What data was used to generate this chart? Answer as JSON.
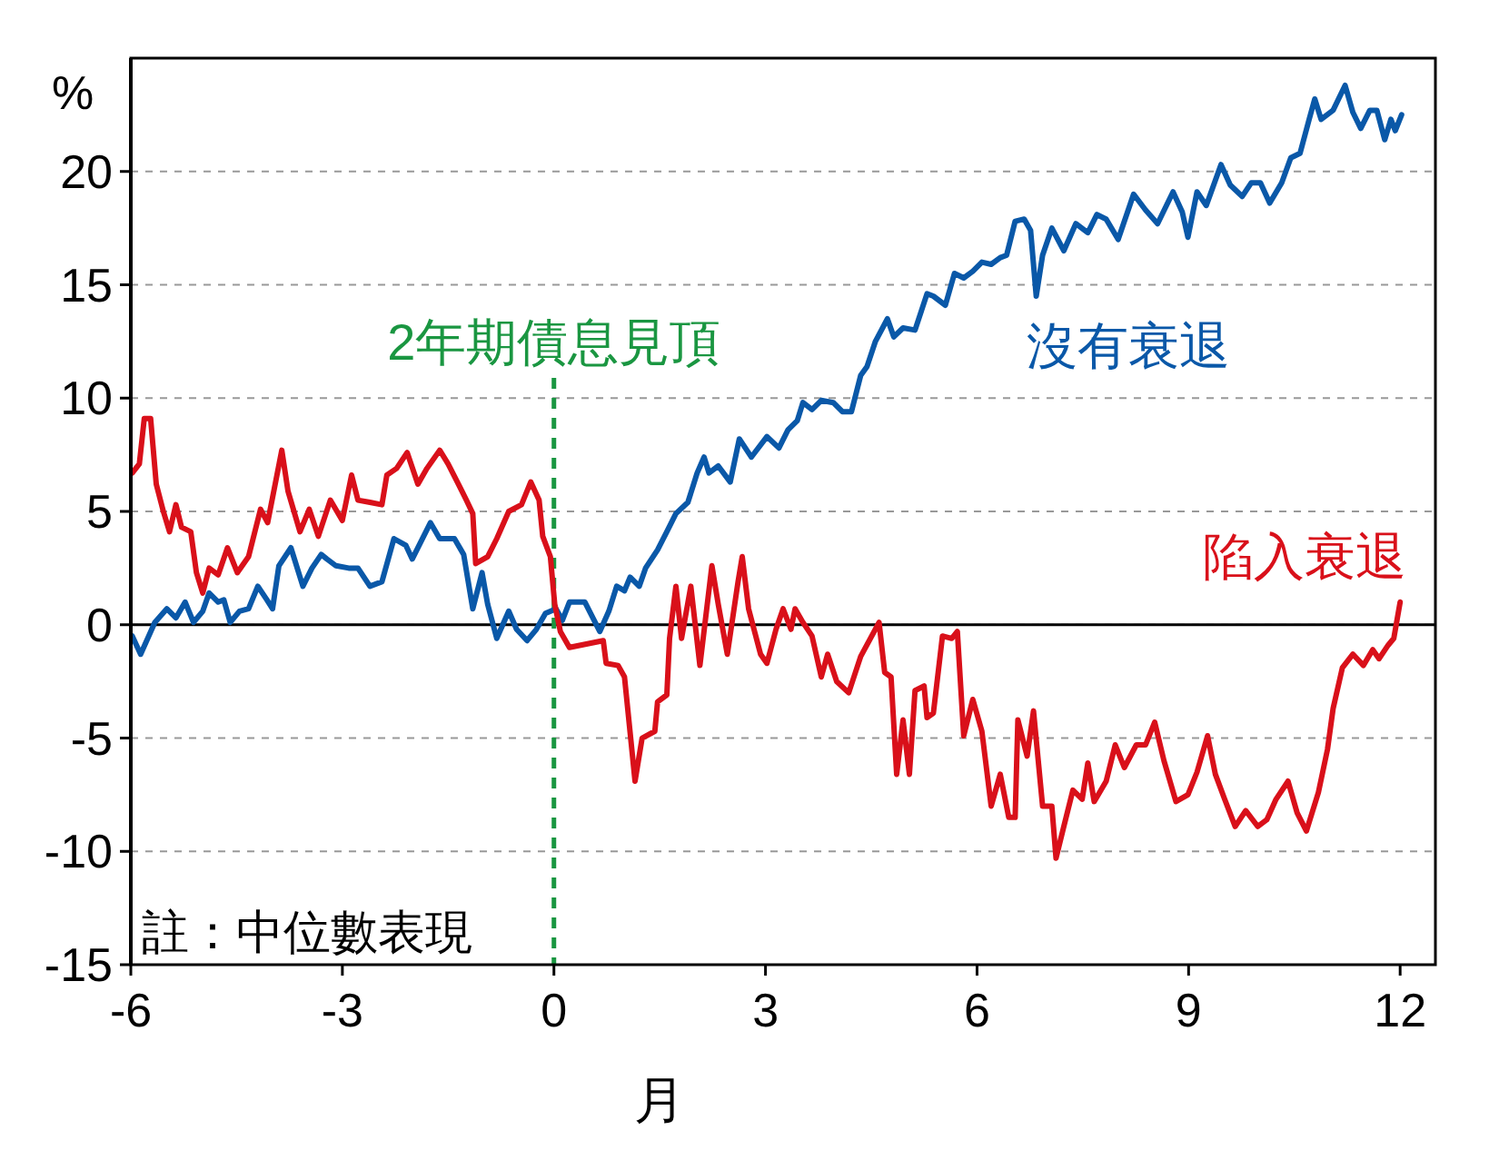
{
  "chart_data": {
    "type": "line",
    "xlabel": "月",
    "ylabel": "%",
    "xlim": [
      -6,
      12.5
    ],
    "ylim": [
      -15,
      25
    ],
    "xticks": [
      -6,
      -3,
      0,
      3,
      6,
      9,
      12
    ],
    "yticks": [
      -15,
      -10,
      -5,
      0,
      5,
      10,
      15,
      20
    ],
    "grid": "y",
    "line_style": "solid",
    "marker": "none",
    "series": [
      {
        "name": "沒有衰退",
        "color": "#0a58a8",
        "x": [
          -5.98,
          -5.86,
          -5.66,
          -5.49,
          -5.36,
          -5.23,
          -5.11,
          -4.98,
          -4.89,
          -4.76,
          -4.68,
          -4.59,
          -4.46,
          -4.33,
          -4.2,
          -4.07,
          -3.99,
          -3.9,
          -3.73,
          -3.56,
          -3.43,
          -3.3,
          -3.22,
          -3.09,
          -2.91,
          -2.78,
          -2.61,
          -2.44,
          -2.27,
          -2.1,
          -2.01,
          -1.88,
          -1.75,
          -1.62,
          -1.41,
          -1.28,
          -1.15,
          -1.02,
          -0.94,
          -0.81,
          -0.64,
          -0.53,
          -0.38,
          -0.25,
          -0.12,
          0.03,
          0.12,
          0.22,
          0.44,
          0.65,
          0.78,
          0.89,
          1.0,
          1.08,
          1.21,
          1.3,
          1.47,
          1.6,
          1.73,
          1.9,
          2.03,
          2.13,
          2.2,
          2.33,
          2.5,
          2.63,
          2.8,
          3.02,
          3.19,
          3.32,
          3.45,
          3.53,
          3.66,
          3.79,
          3.96,
          4.09,
          4.22,
          4.35,
          4.44,
          4.56,
          4.73,
          4.82,
          4.95,
          5.12,
          5.29,
          5.38,
          5.55,
          5.68,
          5.81,
          5.94,
          6.07,
          6.2,
          6.33,
          6.42,
          6.54,
          6.67,
          6.76,
          6.84,
          6.93,
          7.06,
          7.23,
          7.4,
          7.57,
          7.7,
          7.83,
          8.0,
          8.22,
          8.39,
          8.56,
          8.78,
          8.91,
          8.99,
          9.12,
          9.25,
          9.46,
          9.59,
          9.76,
          9.89,
          10.02,
          10.15,
          10.32,
          10.45,
          10.58,
          10.71,
          10.79,
          10.88,
          11.05,
          11.22,
          11.33,
          11.44,
          11.57,
          11.67,
          11.78,
          11.87,
          11.93,
          12.02
        ],
        "values": [
          -0.5,
          -1.3,
          0.1,
          0.7,
          0.3,
          1.0,
          0.1,
          0.6,
          1.4,
          1.0,
          1.1,
          0.1,
          0.6,
          0.7,
          1.7,
          1.1,
          0.7,
          2.6,
          3.4,
          1.7,
          2.5,
          3.1,
          2.9,
          2.6,
          2.5,
          2.5,
          1.7,
          1.9,
          3.8,
          3.5,
          2.9,
          3.7,
          4.5,
          3.8,
          3.8,
          3.1,
          0.7,
          2.3,
          0.9,
          -0.6,
          0.6,
          -0.2,
          -0.7,
          -0.2,
          0.5,
          0.7,
          0.2,
          1.0,
          1.0,
          -0.3,
          0.6,
          1.7,
          1.5,
          2.1,
          1.7,
          2.5,
          3.3,
          4.1,
          4.9,
          5.4,
          6.7,
          7.4,
          6.7,
          7.0,
          6.3,
          8.2,
          7.4,
          8.3,
          7.8,
          8.6,
          9.0,
          9.8,
          9.5,
          9.9,
          9.8,
          9.4,
          9.4,
          11.0,
          11.4,
          12.5,
          13.5,
          12.7,
          13.1,
          13.0,
          14.6,
          14.5,
          14.1,
          15.5,
          15.3,
          15.6,
          16.0,
          15.9,
          16.2,
          16.3,
          17.8,
          17.9,
          17.4,
          14.5,
          16.3,
          17.5,
          16.5,
          17.7,
          17.3,
          18.1,
          17.9,
          17.0,
          19.0,
          18.3,
          17.7,
          19.1,
          18.2,
          17.1,
          19.1,
          18.5,
          20.3,
          19.4,
          18.9,
          19.5,
          19.5,
          18.6,
          19.5,
          20.6,
          20.8,
          22.3,
          23.2,
          22.3,
          22.7,
          23.8,
          22.6,
          21.9,
          22.7,
          22.7,
          21.4,
          22.3,
          21.8,
          22.5
        ]
      },
      {
        "name": "陷入衰退",
        "color": "#d9101a",
        "x": [
          -5.98,
          -5.88,
          -5.81,
          -5.72,
          -5.64,
          -5.54,
          -5.45,
          -5.36,
          -5.28,
          -5.15,
          -5.07,
          -4.98,
          -4.89,
          -4.76,
          -4.63,
          -4.49,
          -4.33,
          -4.16,
          -4.06,
          -3.86,
          -3.77,
          -3.6,
          -3.47,
          -3.34,
          -3.17,
          -3.0,
          -2.87,
          -2.78,
          -2.61,
          -2.44,
          -2.37,
          -2.23,
          -2.08,
          -1.93,
          -1.8,
          -1.62,
          -1.5,
          -1.37,
          -1.24,
          -1.15,
          -1.11,
          -0.94,
          -0.81,
          -0.64,
          -0.46,
          -0.33,
          -0.21,
          -0.16,
          -0.05,
          0.01,
          0.09,
          0.22,
          0.7,
          0.74,
          0.91,
          1.0,
          1.15,
          1.25,
          1.43,
          1.47,
          1.6,
          1.64,
          1.73,
          1.81,
          1.94,
          2.07,
          2.24,
          2.33,
          2.46,
          2.61,
          2.67,
          2.76,
          2.93,
          3.02,
          3.15,
          3.25,
          3.36,
          3.42,
          3.53,
          3.66,
          3.79,
          3.88,
          4.01,
          4.18,
          4.35,
          4.61,
          4.69,
          4.78,
          4.86,
          4.95,
          5.04,
          5.12,
          5.25,
          5.29,
          5.38,
          5.51,
          5.64,
          5.72,
          5.81,
          5.94,
          6.07,
          6.2,
          6.33,
          6.45,
          6.54,
          6.58,
          6.71,
          6.8,
          6.93,
          7.06,
          7.12,
          7.23,
          7.36,
          7.49,
          7.57,
          7.66,
          7.83,
          7.96,
          8.09,
          8.26,
          8.39,
          8.52,
          8.65,
          8.82,
          8.99,
          9.12,
          9.27,
          9.38,
          9.51,
          9.66,
          9.81,
          9.98,
          10.11,
          10.24,
          10.41,
          10.54,
          10.67,
          10.84,
          10.97,
          11.05,
          11.18,
          11.33,
          11.48,
          11.61,
          11.7,
          11.83,
          11.91,
          12.0
        ],
        "values": [
          6.7,
          7.1,
          9.1,
          9.1,
          6.2,
          5.0,
          4.1,
          5.3,
          4.3,
          4.1,
          2.3,
          1.4,
          2.5,
          2.2,
          3.4,
          2.3,
          3.0,
          5.1,
          4.5,
          7.7,
          5.9,
          4.1,
          5.1,
          3.9,
          5.5,
          4.6,
          6.6,
          5.5,
          5.4,
          5.3,
          6.6,
          6.9,
          7.6,
          6.2,
          6.9,
          7.7,
          7.1,
          6.3,
          5.5,
          4.9,
          2.7,
          3.0,
          3.8,
          5.0,
          5.3,
          6.3,
          5.5,
          3.9,
          3.0,
          0.9,
          -0.3,
          -1.0,
          -0.7,
          -1.7,
          -1.8,
          -2.3,
          -6.9,
          -5.0,
          -4.7,
          -3.4,
          -3.1,
          -0.6,
          1.7,
          -0.6,
          1.7,
          -1.8,
          2.6,
          0.9,
          -1.3,
          1.9,
          3.0,
          0.7,
          -1.3,
          -1.7,
          -0.2,
          0.7,
          -0.2,
          0.7,
          0.1,
          -0.5,
          -2.3,
          -1.3,
          -2.5,
          -3.0,
          -1.4,
          0.1,
          -2.1,
          -2.3,
          -6.6,
          -4.2,
          -6.6,
          -2.9,
          -2.7,
          -4.1,
          -3.9,
          -0.5,
          -0.6,
          -0.3,
          -4.9,
          -3.3,
          -4.7,
          -8.0,
          -6.6,
          -8.5,
          -8.5,
          -4.2,
          -5.8,
          -3.8,
          -8.0,
          -8.0,
          -10.3,
          -8.9,
          -7.3,
          -7.7,
          -6.1,
          -7.8,
          -6.9,
          -5.3,
          -6.3,
          -5.3,
          -5.3,
          -4.3,
          -6.0,
          -7.8,
          -7.5,
          -6.5,
          -4.9,
          -6.6,
          -7.7,
          -8.9,
          -8.2,
          -8.9,
          -8.6,
          -7.7,
          -6.9,
          -8.3,
          -9.1,
          -7.4,
          -5.5,
          -3.7,
          -1.9,
          -1.3,
          -1.8,
          -1.1,
          -1.5,
          -0.9,
          -0.6,
          1.0
        ]
      }
    ],
    "ref_lines": [
      {
        "axis": "y",
        "value": 0,
        "color": "#000000",
        "line_style": "solid"
      },
      {
        "axis": "x",
        "value": 0,
        "label": "2年期債息見頂",
        "color": "#1a9641",
        "line_style": "dashed"
      }
    ],
    "annotations": [
      "註：中位數表現"
    ]
  }
}
